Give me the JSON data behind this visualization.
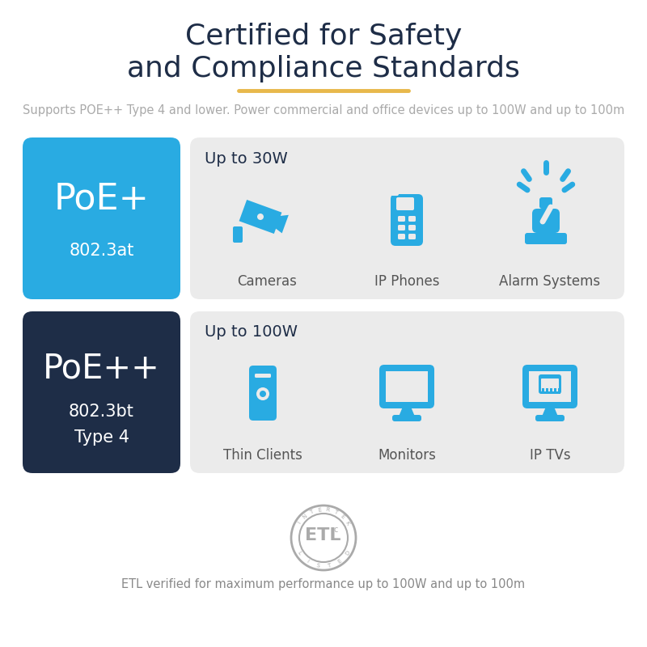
{
  "title_line1": "Certified for Safety",
  "title_line2": "and Compliance Standards",
  "title_color": "#1e2d47",
  "title_fontsize": 26,
  "divider_color": "#e8b84b",
  "subtitle_text": "Supports POE++ Type 4 and lower. Power commercial and office devices up to 100W and up to 100m",
  "subtitle_color": "#aaaaaa",
  "subtitle_fontsize": 10.5,
  "poe_plus_label": "PoE+",
  "poe_plus_sublabel": "802.3at",
  "poe_plus_bg": "#29abe2",
  "poe_plusplus_label": "PoE++",
  "poe_plusplus_sublabel1": "802.3bt",
  "poe_plusplus_sublabel2": "Type 4",
  "poe_plusplus_bg": "#1e2d47",
  "row1_power": "Up to 30W",
  "row1_devices": [
    "Cameras",
    "IP Phones",
    "Alarm Systems"
  ],
  "row2_power": "Up to 100W",
  "row2_devices": [
    "Thin Clients",
    "Monitors",
    "IP TVs"
  ],
  "row_bg": "#ebebeb",
  "row_label_color": "#1e2d47",
  "device_label_color": "#555555",
  "icon_color": "#29abe2",
  "etl_text": "ETL verified for maximum performance up to 100W and up to 100m",
  "etl_color": "#888888",
  "etl_fontsize": 10.5,
  "bg_color": "#ffffff"
}
